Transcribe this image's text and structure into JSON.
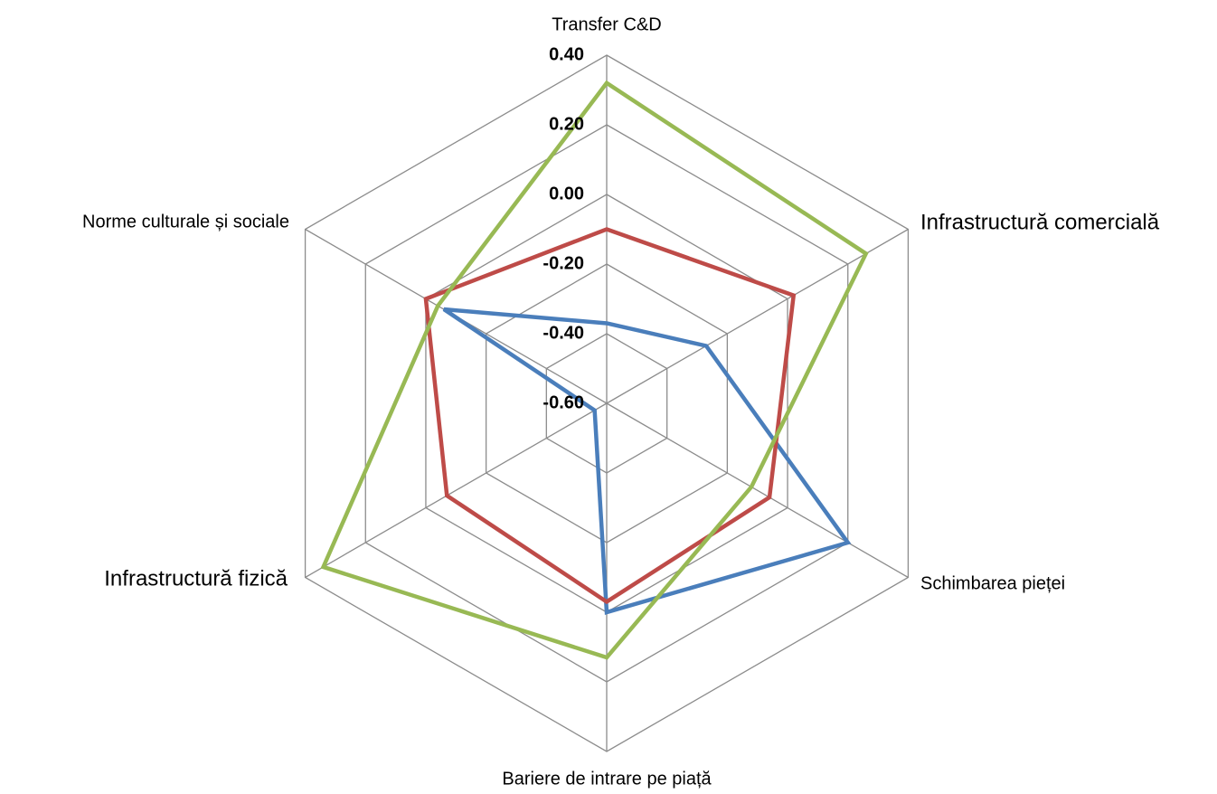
{
  "chart_data": {
    "type": "radar",
    "categories": [
      "Transfer C&D",
      "Infrastructură comercială",
      "Schimbarea pieței",
      "Bariere de intrare pe piață",
      "Infrastructură fizică",
      "Norme culturale și sociale"
    ],
    "series": [
      {
        "color": "#4a7ebb",
        "values": [
          -0.37,
          -0.27,
          0.2,
          0.0,
          -0.56,
          -0.06
        ]
      },
      {
        "color": "#be4b48",
        "values": [
          -0.1,
          0.02,
          -0.06,
          -0.03,
          -0.07,
          0.0
        ]
      },
      {
        "color": "#98b954",
        "values": [
          0.32,
          0.26,
          -0.12,
          0.13,
          0.34,
          -0.04
        ]
      }
    ],
    "ylim": [
      -0.6,
      0.4
    ],
    "yticks": [
      {
        "value": -0.6,
        "label": "-0.60"
      },
      {
        "value": -0.4,
        "label": "-0.40"
      },
      {
        "value": -0.2,
        "label": "-0.20"
      },
      {
        "value": 0,
        "label": "0.00"
      },
      {
        "value": 0.2,
        "label": "0.20"
      },
      {
        "value": 0.4,
        "label": "0.40"
      }
    ],
    "grid": true
  }
}
